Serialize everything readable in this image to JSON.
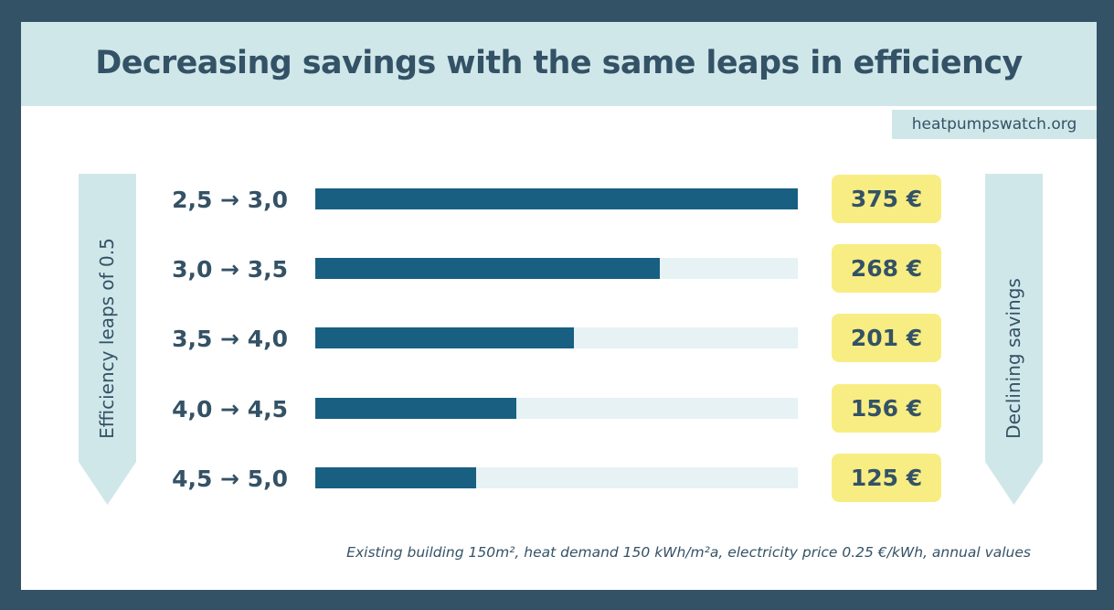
{
  "header": {
    "title": "Decreasing savings with the same leaps in efficiency",
    "source": "heatpumpswatch.org"
  },
  "left_arrow": {
    "label": "Efficiency leaps of 0.5"
  },
  "right_arrow": {
    "label": "Declining savings"
  },
  "footnote": "Existing building 150m², heat demand 150 kWh/m²a, electricity price 0.25 €/kWh, annual values",
  "colors": {
    "frame": "#345266",
    "header_bg": "#d0e7ea",
    "bar_fill": "#185f82",
    "bar_track": "#e6f2f4",
    "badge_bg": "#f8ed83",
    "text": "#345266"
  },
  "chart_data": {
    "type": "bar",
    "orientation": "horizontal",
    "title": "Decreasing savings with the same leaps in efficiency",
    "xlabel": "Declining savings",
    "ylabel": "Efficiency leaps of 0.5",
    "categories": [
      "2,5 → 3,0",
      "3,0 → 3,5",
      "3,5 → 4,0",
      "4,0 → 4,5",
      "4,5 → 5,0"
    ],
    "values": [
      375,
      268,
      201,
      156,
      125
    ],
    "value_labels": [
      "375 €",
      "268 €",
      "201 €",
      "156 €",
      "125 €"
    ],
    "unit": "€",
    "xlim": [
      0,
      375
    ],
    "grid": false,
    "legend": "none",
    "annotations": [
      "heatpumpswatch.org",
      "Existing building 150m², heat demand 150 kWh/m²a, electricity price 0.25 €/kWh, annual values"
    ]
  }
}
